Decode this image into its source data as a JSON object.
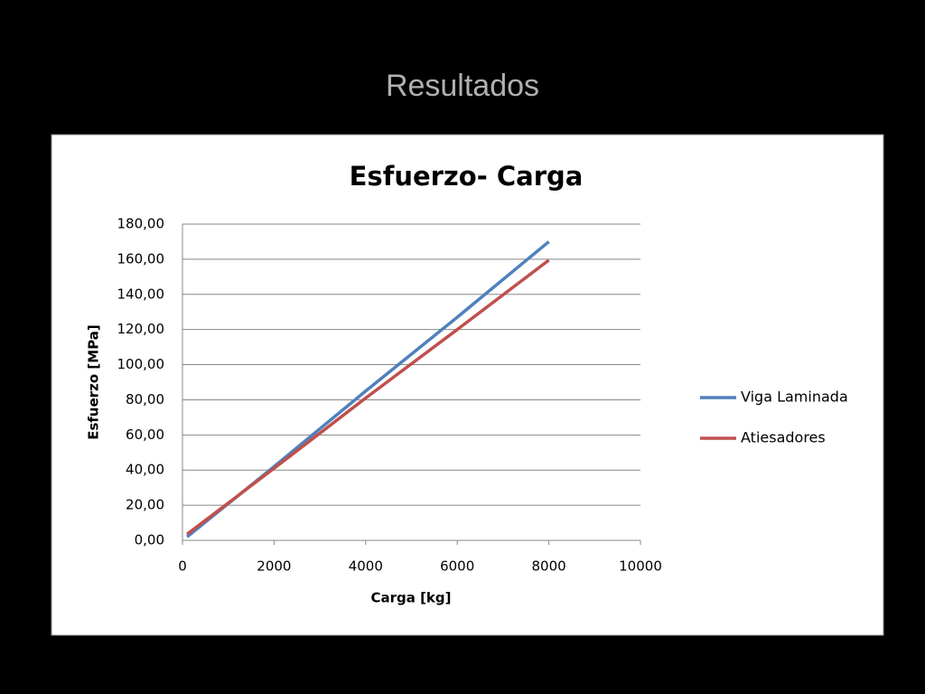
{
  "slide_title": "Resultados",
  "chart_data": {
    "type": "line",
    "title": "Esfuerzo- Carga",
    "x_label": "Carga [kg]",
    "y_label": "Esfuerzo [MPa]",
    "x": [
      100,
      2000,
      4000,
      6000,
      8000
    ],
    "series": [
      {
        "name": "Viga Laminada",
        "color": "#4f81bd",
        "values": [
          2,
          42,
          85,
          127,
          170
        ]
      },
      {
        "name": "Atiesadores",
        "color": "#c0504d",
        "values": [
          3.5,
          41,
          81,
          120,
          159.5
        ]
      }
    ],
    "xlim": [
      0,
      10000
    ],
    "xticks": [
      0,
      2000,
      4000,
      6000,
      8000,
      10000
    ],
    "ylim": [
      0,
      180
    ],
    "yticks": [
      {
        "value": 0,
        "label": "0,00"
      },
      {
        "value": 20,
        "label": "20,00"
      },
      {
        "value": 40,
        "label": "40,00"
      },
      {
        "value": 60,
        "label": "60,00"
      },
      {
        "value": 80,
        "label": "80,00"
      },
      {
        "value": 100,
        "label": "100,00"
      },
      {
        "value": 120,
        "label": "120,00"
      },
      {
        "value": 140,
        "label": "140,00"
      },
      {
        "value": 160,
        "label": "160,00"
      },
      {
        "value": 180,
        "label": "180,00"
      }
    ],
    "grid": true,
    "legend": "right"
  }
}
